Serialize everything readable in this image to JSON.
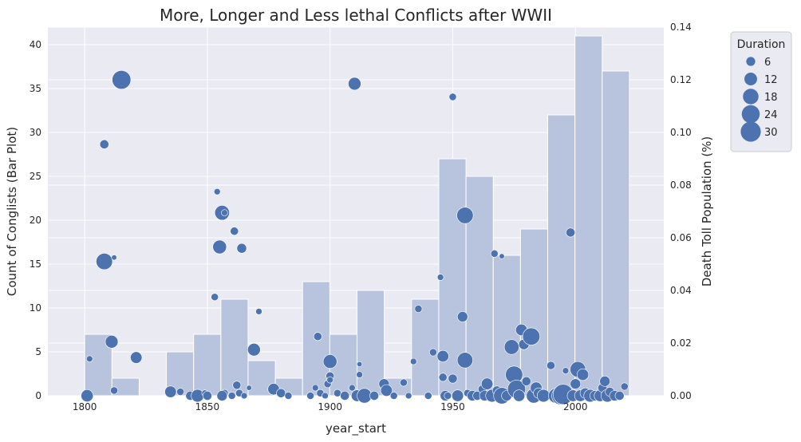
{
  "chart_data": {
    "type": "bar",
    "overlay_type": "scatter",
    "title": "More, Longer and Less lethal Conflicts after WWII",
    "xlabel": "year_start",
    "ylabel_left": "Count of Conglists (Bar Plot)",
    "ylabel_right": "Death Toll Population (%)",
    "xlim": [
      1785,
      2036
    ],
    "ylim_left": [
      0,
      42
    ],
    "ylim_right": [
      0,
      0.14
    ],
    "x_ticks": [
      1800,
      1850,
      1900,
      1950,
      2000
    ],
    "y_left_ticks": [
      0,
      5,
      10,
      15,
      20,
      25,
      30,
      35,
      40
    ],
    "y_right_ticks": [
      "0.00",
      "0.02",
      "0.04",
      "0.06",
      "0.08",
      "0.10",
      "0.12",
      "0.14"
    ],
    "grid": true,
    "bars": {
      "bin_width": 11.1,
      "bin_starts": [
        1800,
        1811.1,
        1822.2,
        1833.3,
        1844.4,
        1855.5,
        1866.6,
        1877.7,
        1888.8,
        1899.9,
        1911,
        1922.1,
        1933.2,
        1944.3,
        1955.4,
        1966.5,
        1977.6,
        1988.7,
        1999.8,
        2010.9
      ],
      "values": [
        7,
        2,
        0,
        5,
        7,
        11,
        4,
        2,
        13,
        7,
        12,
        2,
        11,
        27,
        25,
        16,
        19,
        32,
        41,
        37
      ]
    },
    "scatter": {
      "points": [
        [
          1801,
          0.0,
          11
        ],
        [
          1802,
          0.014,
          3
        ],
        [
          1808,
          0.0955,
          6
        ],
        [
          1808,
          0.051,
          20
        ],
        [
          1811,
          0.0205,
          12
        ],
        [
          1812,
          0.002,
          4
        ],
        [
          1812,
          0.0525,
          2
        ],
        [
          1815,
          0.12,
          26
        ],
        [
          1821,
          0.0145,
          10
        ],
        [
          1835,
          0.0015,
          10
        ],
        [
          1839,
          0.0015,
          4
        ],
        [
          1843,
          0.0,
          6
        ],
        [
          1846,
          0.0,
          12
        ],
        [
          1849,
          0.001,
          3
        ],
        [
          1850,
          0.0,
          6
        ],
        [
          1853,
          0.0375,
          4
        ],
        [
          1854,
          0.0775,
          3
        ],
        [
          1855,
          0.0565,
          14
        ],
        [
          1856,
          0.0695,
          16
        ],
        [
          1857,
          0.0695,
          3
        ],
        [
          1857,
          0.001,
          4
        ],
        [
          1856,
          0.0,
          8
        ],
        [
          1860,
          0.0,
          4
        ],
        [
          1861,
          0.0625,
          5
        ],
        [
          1862,
          0.004,
          5
        ],
        [
          1863,
          0.001,
          4
        ],
        [
          1864,
          0.056,
          7
        ],
        [
          1865,
          0.0,
          3
        ],
        [
          1867,
          0.003,
          2
        ],
        [
          1869,
          0.0175,
          12
        ],
        [
          1871,
          0.032,
          3
        ],
        [
          1877,
          0.0025,
          10
        ],
        [
          1880,
          0.001,
          6
        ],
        [
          1883,
          0.0,
          4
        ],
        [
          1892,
          0.0,
          4
        ],
        [
          1894,
          0.003,
          3
        ],
        [
          1895,
          0.0225,
          5
        ],
        [
          1896,
          0.001,
          4
        ],
        [
          1898,
          0.0,
          3
        ],
        [
          1899,
          0.0045,
          4
        ],
        [
          1900,
          0.013,
          14
        ],
        [
          1900,
          0.0075,
          5
        ],
        [
          1900,
          0.006,
          3
        ],
        [
          1903,
          0.001,
          4
        ],
        [
          1906,
          0.0,
          6
        ],
        [
          1909,
          0.003,
          3
        ],
        [
          1910,
          0.1185,
          12
        ],
        [
          1911,
          0.0,
          10
        ],
        [
          1912,
          0.012,
          2
        ],
        [
          1912,
          0.008,
          3
        ],
        [
          1914,
          0.0,
          16
        ],
        [
          1918,
          0.0,
          6
        ],
        [
          1922,
          0.0045,
          8
        ],
        [
          1923,
          0.002,
          10
        ],
        [
          1926,
          0.0,
          4
        ],
        [
          1930,
          0.005,
          4
        ],
        [
          1932,
          0.0,
          3
        ],
        [
          1934,
          0.013,
          3
        ],
        [
          1936,
          0.033,
          4
        ],
        [
          1940,
          0.0,
          4
        ],
        [
          1942,
          0.0165,
          4
        ],
        [
          1945,
          0.045,
          3
        ],
        [
          1946,
          0.015,
          10
        ],
        [
          1946,
          0.007,
          5
        ],
        [
          1947,
          0.0,
          8
        ],
        [
          1948,
          0.0,
          4
        ],
        [
          1950,
          0.1135,
          4
        ],
        [
          1950,
          0.0065,
          6
        ],
        [
          1952,
          0.0,
          10
        ],
        [
          1954,
          0.03,
          8
        ],
        [
          1955,
          0.0685,
          20
        ],
        [
          1955,
          0.0135,
          18
        ],
        [
          1956,
          0.001,
          4
        ],
        [
          1958,
          0.0,
          8
        ],
        [
          1960,
          0.0,
          6
        ],
        [
          1962,
          0.0025,
          5
        ],
        [
          1963,
          0.0,
          8
        ],
        [
          1964,
          0.0045,
          10
        ],
        [
          1966,
          0.0,
          12
        ],
        [
          1967,
          0.054,
          4
        ],
        [
          1968,
          0.002,
          6
        ],
        [
          1970,
          0.0,
          20
        ],
        [
          1970,
          0.053,
          2
        ],
        [
          1972,
          0.0,
          8
        ],
        [
          1974,
          0.0185,
          16
        ],
        [
          1975,
          0.008,
          22
        ],
        [
          1976,
          0.0025,
          24
        ],
        [
          1977,
          0.0,
          10
        ],
        [
          1978,
          0.025,
          10
        ],
        [
          1979,
          0.0195,
          8
        ],
        [
          1980,
          0.0055,
          6
        ],
        [
          1982,
          0.0225,
          22
        ],
        [
          1983,
          0.0,
          16
        ],
        [
          1984,
          0.003,
          10
        ],
        [
          1985,
          0.001,
          8
        ],
        [
          1987,
          0.0,
          12
        ],
        [
          1990,
          0.0115,
          5
        ],
        [
          1992,
          0.0,
          16
        ],
        [
          1994,
          0.0,
          24
        ],
        [
          1995,
          0.0005,
          30
        ],
        [
          1996,
          0.0095,
          3
        ],
        [
          1998,
          0.062,
          6
        ],
        [
          1999,
          0.0,
          10
        ],
        [
          2000,
          0.0045,
          8
        ],
        [
          2001,
          0.01,
          18
        ],
        [
          2002,
          0.0,
          10
        ],
        [
          2003,
          0.008,
          10
        ],
        [
          2004,
          0.001,
          8
        ],
        [
          2006,
          0.0,
          12
        ],
        [
          2008,
          0.0,
          8
        ],
        [
          2010,
          0.0,
          10
        ],
        [
          2011,
          0.003,
          6
        ],
        [
          2012,
          0.0055,
          8
        ],
        [
          2013,
          0.0,
          12
        ],
        [
          2014,
          0.0015,
          6
        ],
        [
          2016,
          0.0,
          8
        ],
        [
          2018,
          0.0,
          6
        ],
        [
          2020,
          0.0035,
          4
        ]
      ]
    },
    "legend": {
      "title": "Duration",
      "placement": "outside-top-right",
      "entries": [
        {
          "label": "6",
          "size": 6
        },
        {
          "label": "12",
          "size": 12
        },
        {
          "label": "18",
          "size": 18
        },
        {
          "label": "24",
          "size": 24
        },
        {
          "label": "30",
          "size": 30
        }
      ]
    },
    "colors": {
      "background": "#eaeaf2",
      "bar": "#b8c4de",
      "point": "#4c72b0",
      "grid": "#ffffff"
    }
  }
}
